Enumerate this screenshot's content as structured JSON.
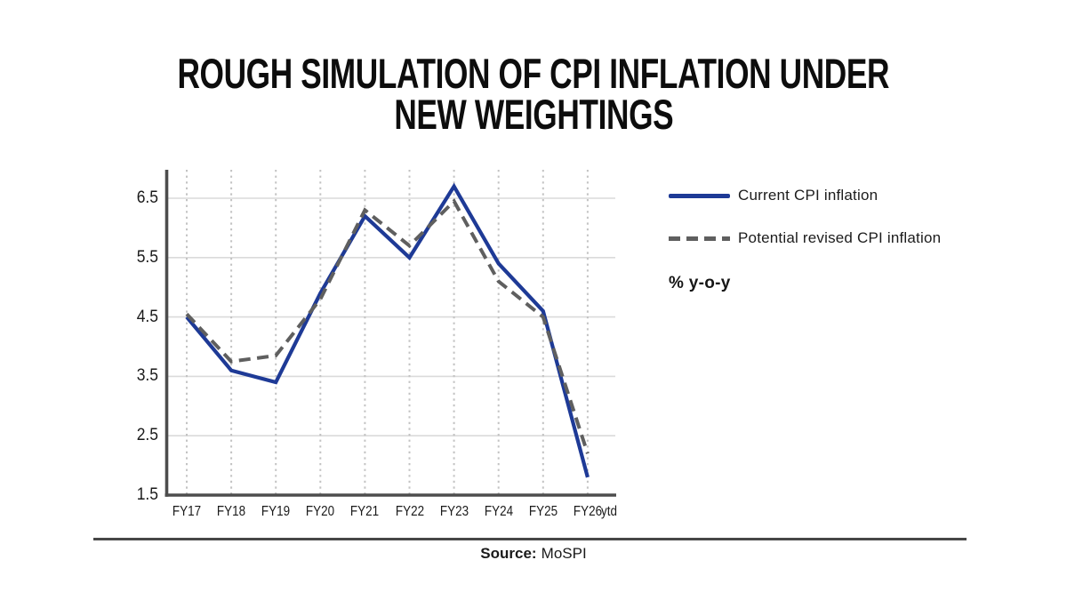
{
  "title": {
    "line1": "ROUGH SIMULATION OF CPI INFLATION UNDER",
    "line2": "NEW WEIGHTINGS"
  },
  "legend": [
    {
      "label": "Current CPI inflation",
      "style": "solid",
      "color": "#1e3a96"
    },
    {
      "label": "Potential revised CPI inflation",
      "style": "dashed",
      "color": "#5f5f5f"
    }
  ],
  "unit_label": "% y-o-y",
  "source": {
    "prefix": "Source:",
    "text": "MoSPI"
  },
  "chart_data": {
    "type": "line",
    "title": "ROUGH SIMULATION OF CPI INFLATION UNDER NEW WEIGHTINGS",
    "ylabel": "% y-o-y",
    "categories": [
      "FY17",
      "FY18",
      "FY19",
      "FY20",
      "FY21",
      "FY22",
      "FY23",
      "FY24",
      "FY25",
      "FY26"
    ],
    "x_axis_suffix": "ytd",
    "series": [
      {
        "name": "Current CPI inflation",
        "style": "solid",
        "color": "#1e3a96",
        "values": [
          4.5,
          3.6,
          3.4,
          4.9,
          6.2,
          5.5,
          6.7,
          5.4,
          4.6,
          1.8
        ]
      },
      {
        "name": "Potential revised CPI inflation",
        "style": "dashed",
        "color": "#5f5f5f",
        "values": [
          4.55,
          3.75,
          3.85,
          4.8,
          6.3,
          5.7,
          6.45,
          5.1,
          4.5,
          2.2
        ]
      }
    ],
    "y_ticks": [
      6.5,
      5.5,
      4.5,
      3.5,
      2.5,
      1.5
    ],
    "ylim": [
      1.5,
      6.9
    ],
    "grid": {
      "horizontal": "solid",
      "vertical": "dotted"
    },
    "legend_position": "right",
    "colors": {
      "axis": "#4d4d4d",
      "h_gridline": "#dadada",
      "v_gridline": "#c3c3c3",
      "text": "#1a1a1a",
      "background": "#ffffff"
    }
  }
}
